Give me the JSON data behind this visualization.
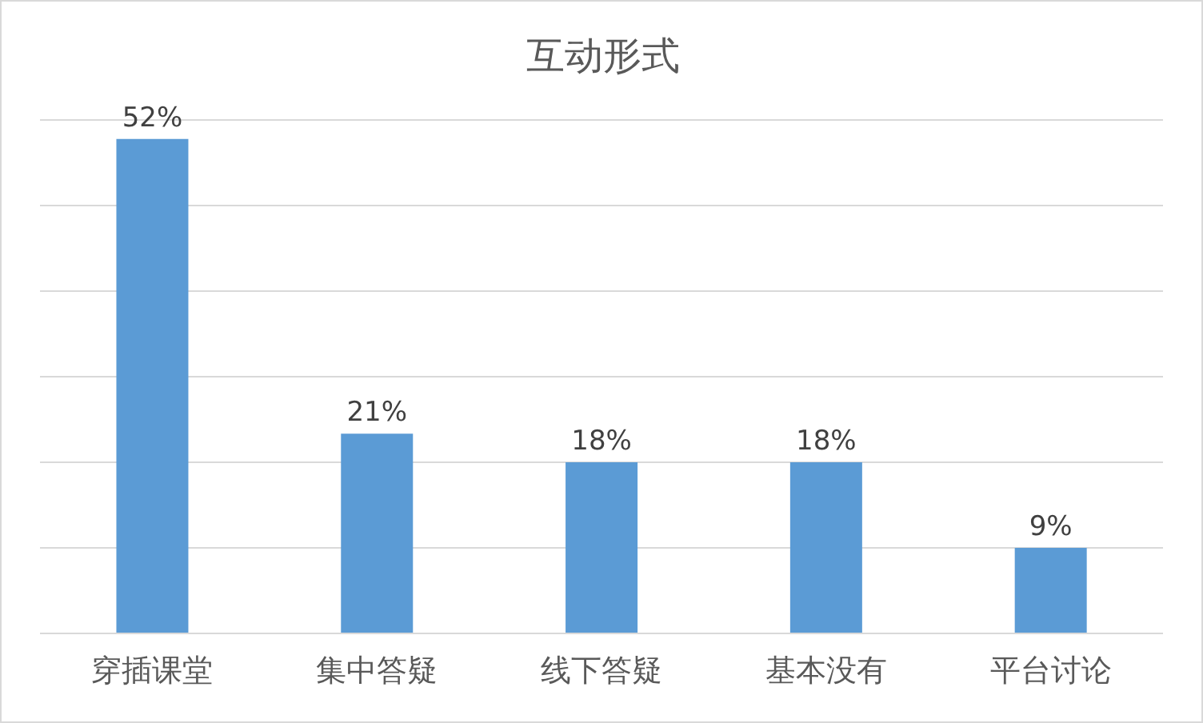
{
  "chart_data": {
    "type": "bar",
    "title": "互动形式",
    "categories": [
      "穿插课堂",
      "集中答疑",
      "线下答疑",
      "基本没有",
      "平台讨论"
    ],
    "values": [
      52,
      21,
      18,
      18,
      9
    ],
    "value_labels": [
      "52%",
      "21%",
      "18%",
      "18%",
      "9%"
    ],
    "color": "#5b9bd5",
    "grid": "y",
    "tick_labels": "x",
    "legend": false
  }
}
